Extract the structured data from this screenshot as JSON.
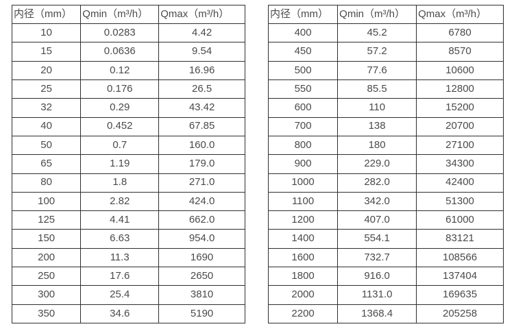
{
  "page": {
    "background_color": "#ffffff",
    "text_color": "#4a4a4a",
    "border_color": "#2e2e2e"
  },
  "tables": [
    {
      "title": "flow-table-small-diameters",
      "headers": [
        "内径（mm）",
        "Qmin（m³/h）",
        "Qmax（m³/h）"
      ],
      "rows": [
        [
          "10",
          "0.0283",
          "4.42"
        ],
        [
          "15",
          "0.0636",
          "9.54"
        ],
        [
          "20",
          "0.12",
          "16.96"
        ],
        [
          "25",
          "0.176",
          "26.5"
        ],
        [
          "32",
          "0.29",
          "43.42"
        ],
        [
          "40",
          "0.452",
          "67.85"
        ],
        [
          "50",
          "0.7",
          "160.0"
        ],
        [
          "65",
          "1.19",
          "179.0"
        ],
        [
          "80",
          "1.8",
          "271.0"
        ],
        [
          "100",
          "2.82",
          "424.0"
        ],
        [
          "125",
          "4.41",
          "662.0"
        ],
        [
          "150",
          "6.63",
          "954.0"
        ],
        [
          "200",
          "11.3",
          "1690"
        ],
        [
          "250",
          "17.6",
          "2650"
        ],
        [
          "300",
          "25.4",
          "3810"
        ],
        [
          "350",
          "34.6",
          "5190"
        ]
      ]
    },
    {
      "title": "flow-table-large-diameters",
      "headers": [
        "内径（mm）",
        "Qmin（m³/h）",
        "Qmax（m³/h）"
      ],
      "rows": [
        [
          "400",
          "45.2",
          "6780"
        ],
        [
          "450",
          "57.2",
          "8570"
        ],
        [
          "500",
          "77.6",
          "10600"
        ],
        [
          "550",
          "85.5",
          "12800"
        ],
        [
          "600",
          "110",
          "15200"
        ],
        [
          "700",
          "138",
          "20700"
        ],
        [
          "800",
          "180",
          "27100"
        ],
        [
          "900",
          "229.0",
          "34300"
        ],
        [
          "1000",
          "282.0",
          "42400"
        ],
        [
          "1100",
          "342.0",
          "51300"
        ],
        [
          "1200",
          "407.0",
          "61000"
        ],
        [
          "1400",
          "554.1",
          "83121"
        ],
        [
          "1600",
          "732.7",
          "108566"
        ],
        [
          "1800",
          "916.0",
          "137404"
        ],
        [
          "2000",
          "1131.0",
          "169635"
        ],
        [
          "2200",
          "1368.4",
          "205258"
        ]
      ]
    }
  ]
}
